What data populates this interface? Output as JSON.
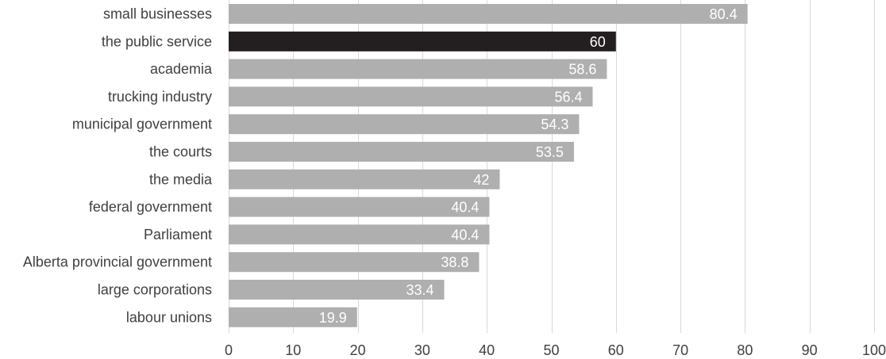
{
  "chart_data": {
    "type": "bar",
    "orientation": "horizontal",
    "categories": [
      "small businesses",
      "the public service",
      "academia",
      "trucking industry",
      "municipal government",
      "the courts",
      "the media",
      "federal government",
      "Parliament",
      "Alberta provincial government",
      "large corporations",
      "labour unions"
    ],
    "values": [
      80.4,
      60,
      58.6,
      56.4,
      54.3,
      53.5,
      42,
      40.4,
      40.4,
      38.8,
      33.4,
      19.9
    ],
    "data_labels": [
      "80.4",
      "60",
      "58.6",
      "56.4",
      "54.3",
      "53.5",
      "42",
      "40.4",
      "40.4",
      "38.8",
      "33.4",
      "19.9"
    ],
    "highlight_index": 1,
    "xlim": [
      0,
      100
    ],
    "xticks": [
      "0",
      "10",
      "20",
      "30",
      "40",
      "50",
      "60",
      "70",
      "80",
      "90",
      "100"
    ],
    "grid": true,
    "legend": "none",
    "colors": {
      "bar": "#afafaf",
      "highlight": "#231f20",
      "label_text": "#404040",
      "value_text": "#ffffff",
      "grid": "#d9d9d9"
    }
  }
}
